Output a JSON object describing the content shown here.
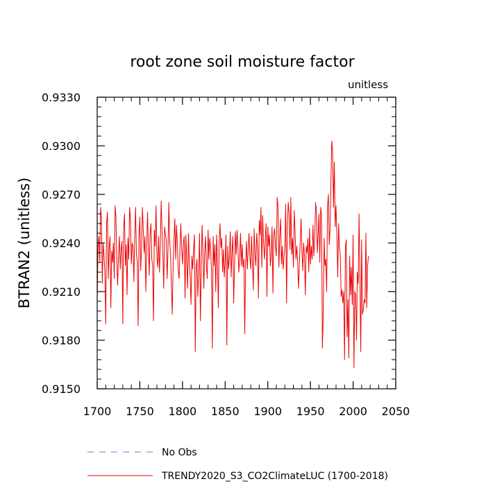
{
  "chart_data": {
    "type": "line",
    "title": "root zone soil moisture factor",
    "units_label": "unitless",
    "xlabel": "",
    "ylabel": "BTRAN2  (unitless)",
    "xlim": [
      1700,
      2050
    ],
    "ylim": [
      0.915,
      0.933
    ],
    "xticks": [
      1700,
      1750,
      1800,
      1850,
      1900,
      1950,
      2000,
      2050
    ],
    "xtick_labels": [
      "1700",
      "1750",
      "1800",
      "1850",
      "1900",
      "1950",
      "2000",
      "2050"
    ],
    "yticks": [
      0.915,
      0.918,
      0.921,
      0.924,
      0.927,
      0.93,
      0.933
    ],
    "ytick_labels": [
      "0.9150",
      "0.9180",
      "0.9210",
      "0.9240",
      "0.9270",
      "0.9300",
      "0.9330"
    ],
    "x_start": 1700,
    "series": [
      {
        "name": "No Obs",
        "color": "#7777dd",
        "style": "dashed",
        "values": []
      },
      {
        "name": "TRENDY2020_S3_CO2ClimateLUC (1700-2018)",
        "color": "#ee0000",
        "style": "solid",
        "values": [
          0.9205,
          0.9238,
          0.9244,
          0.9228,
          0.9262,
          0.9255,
          0.9215,
          0.924,
          0.9232,
          0.9222,
          0.919,
          0.9252,
          0.9259,
          0.9218,
          0.9237,
          0.9244,
          0.92,
          0.9235,
          0.9228,
          0.924,
          0.9218,
          0.9263,
          0.9256,
          0.9228,
          0.9214,
          0.9233,
          0.9244,
          0.9224,
          0.9236,
          0.9241,
          0.919,
          0.925,
          0.9258,
          0.9226,
          0.9239,
          0.9208,
          0.9243,
          0.923,
          0.9262,
          0.9255,
          0.9227,
          0.924,
          0.9238,
          0.9216,
          0.9244,
          0.9262,
          0.9233,
          0.9229,
          0.9189,
          0.9244,
          0.9256,
          0.9223,
          0.9237,
          0.9262,
          0.9248,
          0.9234,
          0.9244,
          0.921,
          0.9236,
          0.9259,
          0.9238,
          0.922,
          0.9246,
          0.9252,
          0.923,
          0.9226,
          0.9192,
          0.9248,
          0.9238,
          0.9263,
          0.9231,
          0.9225,
          0.9244,
          0.9222,
          0.9238,
          0.9266,
          0.9248,
          0.9233,
          0.9212,
          0.925,
          0.9245,
          0.9242,
          0.9218,
          0.9236,
          0.9265,
          0.924,
          0.9234,
          0.9213,
          0.9196,
          0.9226,
          0.9242,
          0.9255,
          0.923,
          0.9251,
          0.9239,
          0.9223,
          0.9218,
          0.9235,
          0.9252,
          0.9237,
          0.9227,
          0.924,
          0.9244,
          0.9206,
          0.9245,
          0.9229,
          0.9212,
          0.9246,
          0.9228,
          0.9219,
          0.9202,
          0.9232,
          0.9224,
          0.9236,
          0.9245,
          0.9173,
          0.9225,
          0.923,
          0.9207,
          0.9222,
          0.9246,
          0.9192,
          0.9225,
          0.9251,
          0.9235,
          0.9212,
          0.9234,
          0.9244,
          0.9226,
          0.9218,
          0.9248,
          0.923,
          0.9243,
          0.9236,
          0.9222,
          0.9175,
          0.9244,
          0.9226,
          0.9239,
          0.921,
          0.9245,
          0.9228,
          0.92,
          0.924,
          0.9252,
          0.9237,
          0.9243,
          0.9222,
          0.9236,
          0.9219,
          0.9229,
          0.9245,
          0.9177,
          0.9238,
          0.9224,
          0.923,
          0.9247,
          0.9219,
          0.9234,
          0.9244,
          0.9203,
          0.9225,
          0.9247,
          0.9233,
          0.9248,
          0.9238,
          0.9222,
          0.923,
          0.9246,
          0.9226,
          0.9239,
          0.9225,
          0.923,
          0.9184,
          0.9228,
          0.9241,
          0.9224,
          0.9236,
          0.9246,
          0.9231,
          0.9224,
          0.9244,
          0.9228,
          0.9211,
          0.9249,
          0.9233,
          0.9226,
          0.9246,
          0.9238,
          0.9206,
          0.9254,
          0.9245,
          0.9262,
          0.9225,
          0.9257,
          0.924,
          0.923,
          0.9242,
          0.9252,
          0.9207,
          0.925,
          0.9238,
          0.9245,
          0.9226,
          0.9232,
          0.925,
          0.9209,
          0.9245,
          0.9249,
          0.9238,
          0.9232,
          0.9268,
          0.9262,
          0.9225,
          0.9244,
          0.9255,
          0.9227,
          0.9238,
          0.9224,
          0.9231,
          0.9237,
          0.9264,
          0.9203,
          0.9252,
          0.9265,
          0.9258,
          0.9236,
          0.9268,
          0.9233,
          0.9243,
          0.9225,
          0.926,
          0.9247,
          0.923,
          0.9238,
          0.9228,
          0.9212,
          0.9227,
          0.924,
          0.9255,
          0.9235,
          0.9223,
          0.924,
          0.9232,
          0.9208,
          0.9238,
          0.9234,
          0.9243,
          0.9222,
          0.9249,
          0.9227,
          0.9238,
          0.923,
          0.9251,
          0.9232,
          0.9242,
          0.9265,
          0.926,
          0.9234,
          0.9245,
          0.9258,
          0.9228,
          0.9262,
          0.9257,
          0.9175,
          0.9195,
          0.9243,
          0.9226,
          0.923,
          0.921,
          0.9262,
          0.927,
          0.9239,
          0.9249,
          0.9277,
          0.9303,
          0.9296,
          0.9262,
          0.929,
          0.925,
          0.9263,
          0.9245,
          0.9219,
          0.9252,
          0.9237,
          0.9233,
          0.9207,
          0.9211,
          0.9203,
          0.921,
          0.9168,
          0.9238,
          0.9242,
          0.9182,
          0.9205,
          0.9169,
          0.9232,
          0.9208,
          0.9225,
          0.9202,
          0.9245,
          0.9163,
          0.921,
          0.9208,
          0.918,
          0.9222,
          0.9215,
          0.9258,
          0.9219,
          0.9173,
          0.9242,
          0.9196,
          0.9199,
          0.9205,
          0.9203,
          0.9246,
          0.92,
          0.9226,
          0.9232
        ]
      }
    ]
  }
}
